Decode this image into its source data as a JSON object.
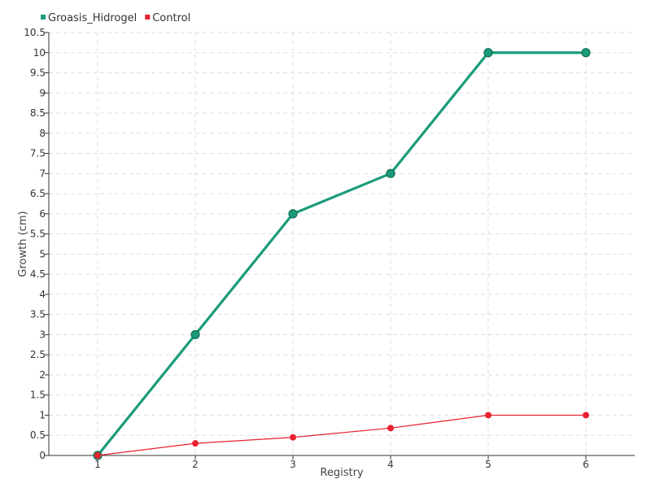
{
  "chart_data": {
    "type": "line",
    "xlabel": "Registry",
    "ylabel": "Growth (cm)",
    "x": [
      1,
      2,
      3,
      4,
      5,
      6
    ],
    "x_tick_labels": [
      "1",
      "2",
      "3",
      "4",
      "5",
      "6"
    ],
    "xlim": [
      0.5,
      6.5
    ],
    "ylim": [
      0,
      10.5
    ],
    "y_tick_labels": [
      "0",
      "0.5",
      "1",
      "1.5",
      "2",
      "2.5",
      "3",
      "3.5",
      "4",
      "4.5",
      "5",
      "5.5",
      "6",
      "6.5",
      "7",
      "7.5",
      "8",
      "8.5",
      "9",
      "9.5",
      "10",
      "10.5"
    ],
    "grid": true,
    "legend_position": "top-left",
    "series": [
      {
        "name": "Groasis_Hidrogel",
        "color": "#1a9b7a",
        "values": [
          0,
          3,
          6,
          7,
          10,
          10
        ]
      },
      {
        "name": "Control",
        "color": "#e8202e",
        "values": [
          0,
          0.3,
          0.45,
          0.68,
          1,
          1
        ]
      }
    ]
  }
}
